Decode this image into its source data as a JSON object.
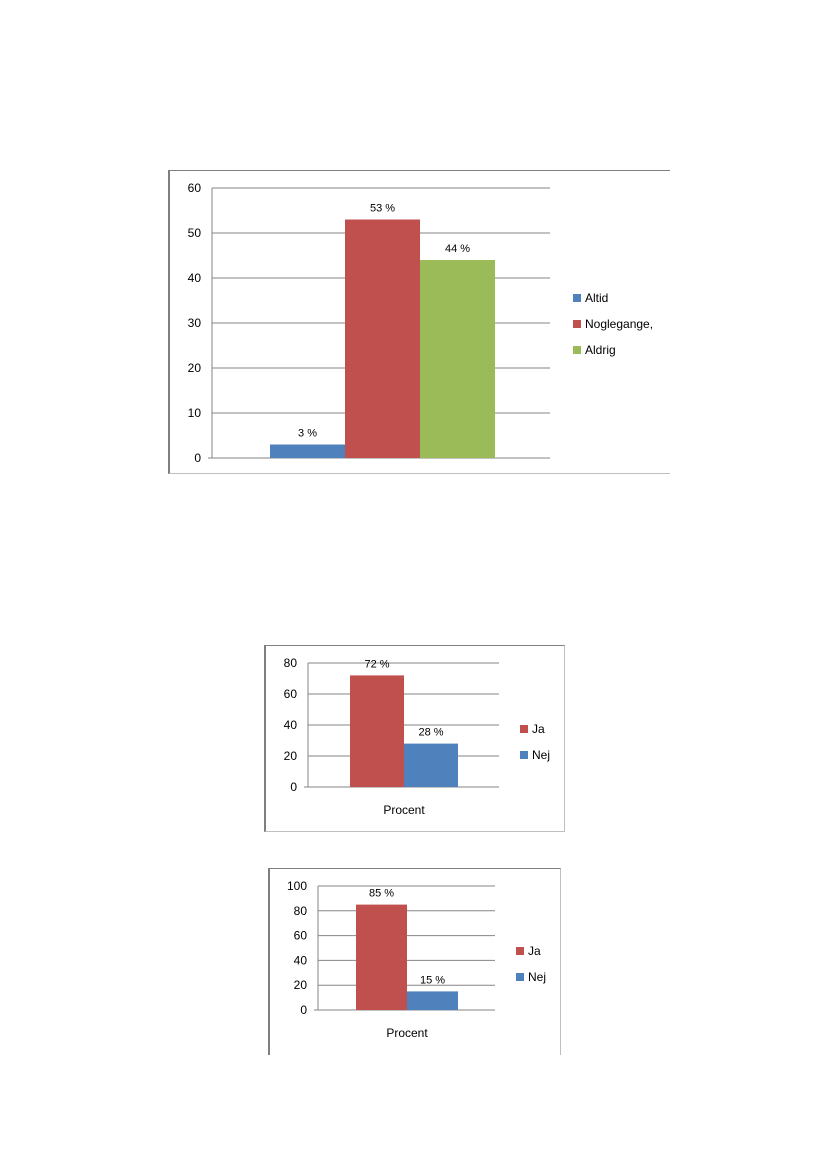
{
  "chart_data": [
    {
      "type": "bar",
      "ylim": [
        0,
        60
      ],
      "yticks": [
        0,
        10,
        20,
        30,
        40,
        50,
        60
      ],
      "grid": true,
      "legend_position": "right",
      "series": [
        {
          "name": "Altid",
          "value": 3,
          "label": "3 %",
          "color": "#4f81bd"
        },
        {
          "name": "Noglegange,",
          "value": 53,
          "label": "53 %",
          "color": "#c0504d"
        },
        {
          "name": "Aldrig",
          "value": 44,
          "label": "44 %",
          "color": "#9bbb59"
        }
      ]
    },
    {
      "type": "bar",
      "categories": [
        "Procent"
      ],
      "ylim": [
        0,
        80
      ],
      "yticks": [
        0,
        20,
        40,
        60,
        80
      ],
      "grid": true,
      "legend_position": "right",
      "series": [
        {
          "name": "Ja",
          "value": 72,
          "label": "72 %",
          "color": "#c0504d"
        },
        {
          "name": "Nej",
          "value": 28,
          "label": "28 %",
          "color": "#4f81bd"
        }
      ]
    },
    {
      "type": "bar",
      "categories": [
        "Procent"
      ],
      "ylim": [
        0,
        100
      ],
      "yticks": [
        0,
        20,
        40,
        60,
        80,
        100
      ],
      "grid": true,
      "legend_position": "right",
      "series": [
        {
          "name": "Ja",
          "value": 85,
          "label": "85 %",
          "color": "#c0504d"
        },
        {
          "name": "Nej",
          "value": 15,
          "label": "15 %",
          "color": "#4f81bd"
        }
      ]
    }
  ]
}
